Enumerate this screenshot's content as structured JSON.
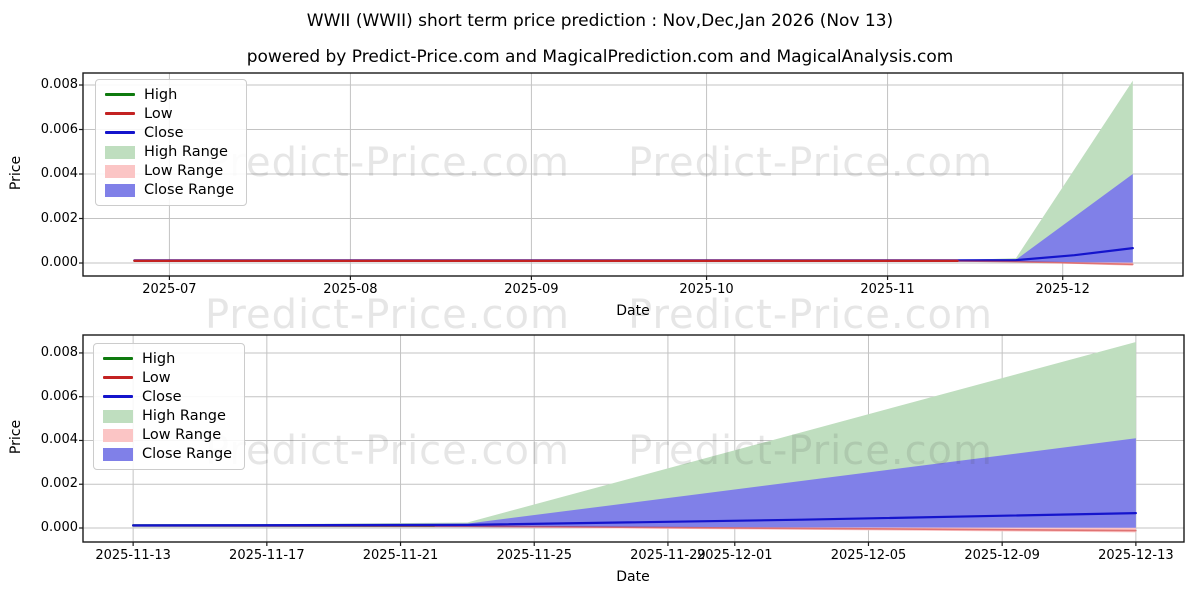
{
  "title": "WWII (WWII) short term price prediction : Nov,Dec,Jan 2026 (Nov 13)",
  "subtitle": "powered by Predict-Price.com and MagicalPrediction.com and MagicalAnalysis.com",
  "watermark": {
    "text": "Predict-Price.com"
  },
  "colors": {
    "high_line": "#0e7a0e",
    "low_line": "#c32222",
    "close_line": "#1414cc",
    "high_band": "#bfdebf",
    "low_band": "#fbc5c5",
    "close_band": "#8080e8",
    "grid": "#c3c3c3",
    "spine": "#1a1a1a"
  },
  "legend": {
    "items": [
      {
        "label": "High",
        "type": "line",
        "color": "#0e7a0e"
      },
      {
        "label": "Low",
        "type": "line",
        "color": "#c32222"
      },
      {
        "label": "Close",
        "type": "line",
        "color": "#1414cc"
      },
      {
        "label": "High Range",
        "type": "patch",
        "color": "#bfdebf"
      },
      {
        "label": "Low Range",
        "type": "patch",
        "color": "#fbc5c5"
      },
      {
        "label": "Close Range",
        "type": "patch",
        "color": "#8080e8"
      }
    ]
  },
  "chart_data": [
    {
      "type": "line",
      "name": "six-month-history-and-forecast",
      "xlabel": "Date",
      "ylabel": "Price",
      "grid": true,
      "x_domain_days": [
        167.2,
        355.6
      ],
      "y_domain": [
        -0.000584,
        0.00854
      ],
      "x_ticks": [
        {
          "label": "2025-07",
          "d": 182
        },
        {
          "label": "2025-08",
          "d": 213
        },
        {
          "label": "2025-09",
          "d": 244
        },
        {
          "label": "2025-10",
          "d": 274
        },
        {
          "label": "2025-11",
          "d": 305
        },
        {
          "label": "2025-12",
          "d": 335
        }
      ],
      "y_ticks": [
        {
          "label": "0.000",
          "v": 0.0
        },
        {
          "label": "0.002",
          "v": 0.002
        },
        {
          "label": "0.004",
          "v": 0.004
        },
        {
          "label": "0.006",
          "v": 0.006
        },
        {
          "label": "0.008",
          "v": 0.008
        }
      ],
      "bands": [
        {
          "name": "high-range",
          "color": "#bfdebf",
          "top": [
            [
              317,
              0.00012
            ],
            [
              327,
              0.00022
            ],
            [
              347,
              0.0082
            ]
          ],
          "bottom": [
            [
              317,
              8e-05
            ],
            [
              347,
              4e-05
            ]
          ]
        },
        {
          "name": "low-range",
          "color": "#fbc5c5",
          "top": [
            [
              317,
              0.0001
            ],
            [
              327,
              0.0001
            ],
            [
              347,
              8e-05
            ]
          ],
          "bottom": [
            [
              317,
              8e-05
            ],
            [
              327,
              4e-05
            ],
            [
              347,
              -0.00012
            ]
          ]
        },
        {
          "name": "close-range",
          "color": "#8080e8",
          "top": [
            [
              317,
              0.0001
            ],
            [
              327,
              0.00015
            ],
            [
              347,
              0.004
            ]
          ],
          "bottom": [
            [
              317,
              6e-05
            ],
            [
              327,
              5e-05
            ],
            [
              347,
              2e-05
            ]
          ]
        }
      ],
      "lines": [
        {
          "name": "high",
          "color": "#0e7a0e",
          "width": 2.2,
          "points": [
            [
              176,
              0.0001
            ],
            [
              317,
              0.0001
            ]
          ]
        },
        {
          "name": "close",
          "color": "#1414cc",
          "width": 2.2,
          "points": [
            [
              176,
              0.00012
            ],
            [
              317,
              0.00012
            ],
            [
              327,
              0.00013
            ],
            [
              337,
              0.00035
            ],
            [
              347,
              0.00067
            ]
          ]
        },
        {
          "name": "low",
          "color": "#c32222",
          "width": 2.4,
          "points": [
            [
              176,
              0.0001
            ],
            [
              317,
              0.0001
            ]
          ]
        },
        {
          "name": "low-forecast",
          "color": "#c32222",
          "width": 1.6,
          "opacity": 0.5,
          "points": [
            [
              317,
              9e-05
            ],
            [
              327,
              6e-05
            ],
            [
              347,
              -6e-05
            ]
          ]
        }
      ]
    },
    {
      "type": "line",
      "name": "thirty-day-forecast-detail",
      "xlabel": "Date",
      "ylabel": "Price",
      "grid": true,
      "x_domain_days": [
        315.5,
        348.44
      ],
      "y_domain": [
        -0.00064,
        0.00882
      ],
      "x_ticks": [
        {
          "label": "2025-11-13",
          "d": 317
        },
        {
          "label": "2025-11-17",
          "d": 321
        },
        {
          "label": "2025-11-21",
          "d": 325
        },
        {
          "label": "2025-11-25",
          "d": 329
        },
        {
          "label": "2025-11-29",
          "d": 333
        },
        {
          "label": "2025-12-01",
          "d": 335
        },
        {
          "label": "2025-12-05",
          "d": 339
        },
        {
          "label": "2025-12-09",
          "d": 343
        },
        {
          "label": "2025-12-13",
          "d": 347
        }
      ],
      "y_ticks": [
        {
          "label": "0.000",
          "v": 0.0
        },
        {
          "label": "0.002",
          "v": 0.002
        },
        {
          "label": "0.004",
          "v": 0.004
        },
        {
          "label": "0.006",
          "v": 0.006
        },
        {
          "label": "0.008",
          "v": 0.008
        }
      ],
      "bands": [
        {
          "name": "high-range",
          "color": "#bfdebf",
          "top": [
            [
              317,
              0.00012
            ],
            [
              327,
              0.00025
            ],
            [
              347,
              0.0085
            ]
          ],
          "bottom": [
            [
              317,
              3e-05
            ],
            [
              347,
              3e-05
            ]
          ]
        },
        {
          "name": "low-range",
          "color": "#fbc5c5",
          "top": [
            [
              317,
              0.0001
            ],
            [
              327,
              9e-05
            ],
            [
              347,
              6e-05
            ]
          ],
          "bottom": [
            [
              317,
              7e-05
            ],
            [
              327,
              3e-05
            ],
            [
              347,
              -0.0002
            ]
          ]
        },
        {
          "name": "close-range",
          "color": "#8080e8",
          "top": [
            [
              317,
              0.00012
            ],
            [
              327,
              0.0002
            ],
            [
              347,
              0.0041
            ]
          ],
          "bottom": [
            [
              317,
              6e-05
            ],
            [
              327,
              4e-05
            ],
            [
              347,
              1e-05
            ]
          ]
        }
      ],
      "lines": [
        {
          "name": "high",
          "color": "#0e7a0e",
          "width": 2.2,
          "points": [
            [
              317,
              0.00012
            ],
            [
              326,
              0.00012
            ]
          ]
        },
        {
          "name": "low",
          "color": "#c32222",
          "width": 1.6,
          "opacity": 0.5,
          "points": [
            [
              317,
              0.0001
            ],
            [
              327,
              8e-05
            ],
            [
              347,
              -0.00012
            ]
          ]
        },
        {
          "name": "close",
          "color": "#1414cc",
          "width": 2.2,
          "points": [
            [
              317,
              0.00012
            ],
            [
              327,
              0.00014
            ],
            [
              337,
              0.00038
            ],
            [
              347,
              0.00068
            ]
          ]
        }
      ]
    }
  ]
}
